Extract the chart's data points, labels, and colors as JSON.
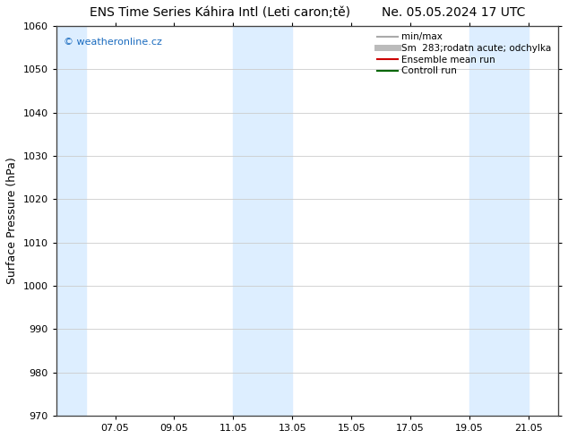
{
  "title": "ENS Time Series Káhira Intl (Leti caron;tě)        Ne. 05.05.2024 17 UTC",
  "ylabel": "Surface Pressure (hPa)",
  "ylim": [
    970,
    1060
  ],
  "yticks": [
    970,
    980,
    990,
    1000,
    1010,
    1020,
    1030,
    1040,
    1050,
    1060
  ],
  "xtick_labels": [
    "07.05",
    "09.05",
    "11.05",
    "13.05",
    "15.05",
    "17.05",
    "19.05",
    "21.05"
  ],
  "xtick_positions": [
    2,
    4,
    6,
    8,
    10,
    12,
    14,
    16
  ],
  "x_min": 0,
  "x_max": 17,
  "shaded_bands": [
    {
      "x_start": 0,
      "x_end": 1,
      "color": "#ddeeff"
    },
    {
      "x_start": 6,
      "x_end": 8,
      "color": "#ddeeff"
    },
    {
      "x_start": 14,
      "x_end": 16,
      "color": "#ddeeff"
    }
  ],
  "watermark_text": "© weatheronline.cz",
  "watermark_color": "#1a6bbf",
  "legend_entries": [
    {
      "label": "min/max",
      "color": "#aaaaaa",
      "lw": 1.5,
      "linestyle": "-"
    },
    {
      "label": "Sm  283;rodatn acute; odchylka",
      "color": "#bbbbbb",
      "lw": 5,
      "linestyle": "-"
    },
    {
      "label": "Ensemble mean run",
      "color": "#cc0000",
      "lw": 1.5,
      "linestyle": "-"
    },
    {
      "label": "Controll run",
      "color": "#006600",
      "lw": 1.5,
      "linestyle": "-"
    }
  ],
  "bg_color": "#ffffff",
  "plot_bg_color": "#ffffff",
  "grid_color": "#cccccc",
  "title_fontsize": 10,
  "axis_label_fontsize": 9,
  "tick_fontsize": 8,
  "legend_fontsize": 7.5
}
